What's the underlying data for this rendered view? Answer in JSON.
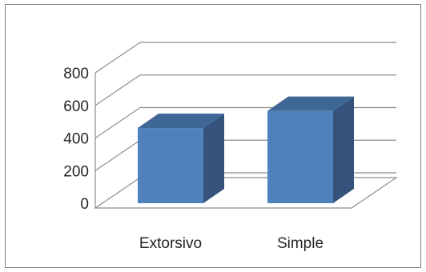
{
  "chart_data": {
    "type": "bar",
    "categories": [
      "Extorsivo",
      "Simple"
    ],
    "values": [
      520,
      625
    ],
    "ylim": [
      0,
      800
    ],
    "yticks": [
      "0",
      "200",
      "400",
      "600",
      "800"
    ],
    "title": "",
    "xlabel": "",
    "ylabel": "",
    "grid": true,
    "legend": "none",
    "colors": {
      "bar_front": "#4f81bd",
      "bar_side": "#34527c",
      "bar_top": "#3f6796",
      "gridline": "#8c8c8c",
      "floor": "#8c8c8c"
    }
  }
}
